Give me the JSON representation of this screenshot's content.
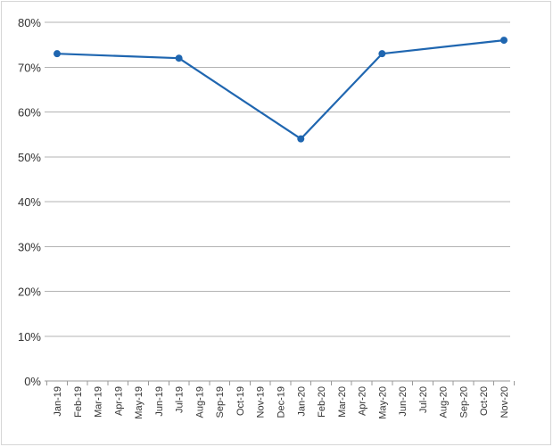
{
  "chart_data": {
    "type": "line",
    "title": "",
    "xlabel": "",
    "ylabel": "",
    "categories": [
      "Jan-19",
      "Feb-19",
      "Mar-19",
      "Apr-19",
      "May-19",
      "Jun-19",
      "Jul-19",
      "Aug-19",
      "Sep-19",
      "Oct-19",
      "Nov-19",
      "Dec-19",
      "Jan-20",
      "Feb-20",
      "Mar-20",
      "Apr-20",
      "May-20",
      "Jun-20",
      "Jul-20",
      "Aug-20",
      "Sep-20",
      "Oct-20",
      "Nov-20"
    ],
    "y_tick_labels": [
      "0%",
      "10%",
      "20%",
      "30%",
      "40%",
      "50%",
      "60%",
      "70%",
      "80%"
    ],
    "ylim": [
      0,
      80
    ],
    "y_unit": "%",
    "grid": true,
    "legend": "none",
    "series": [
      {
        "color": "#1f66b0",
        "points": [
          {
            "x": "Jan-19",
            "y": 73
          },
          {
            "x": "Jul-19",
            "y": 72
          },
          {
            "x": "Jan-20",
            "y": 54
          },
          {
            "x": "May-20",
            "y": 73
          },
          {
            "x": "Nov-20",
            "y": 76
          }
        ]
      }
    ]
  }
}
